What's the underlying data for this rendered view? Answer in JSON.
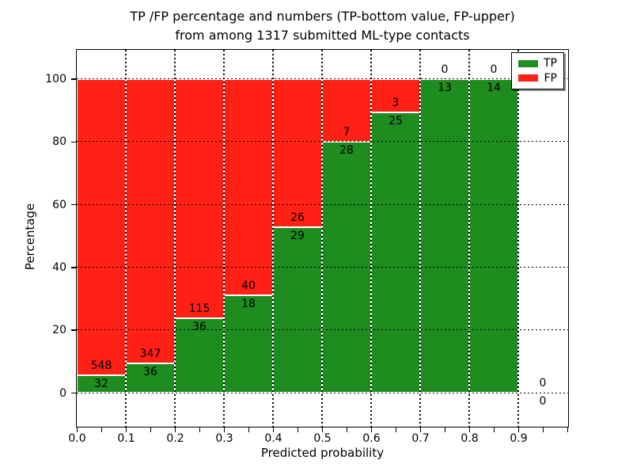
{
  "figure": {
    "title_line1": "TP /FP percentage and numbers (TP-bottom value, FP-upper)",
    "title_line2": "from among 1317 submitted ML-type contacts"
  },
  "chart_data": {
    "type": "bar",
    "stacked": true,
    "orientation": "vertical",
    "title": "TP /FP percentage and numbers (TP-bottom value, FP-upper)\nfrom among 1317 submitted ML-type contacts",
    "xlabel": "Predicted probability",
    "ylabel": "Percentage",
    "total_contacts": 1317,
    "bin_edges": [
      0.0,
      0.1,
      0.2,
      0.3,
      0.4,
      0.5,
      0.6,
      0.7,
      0.8,
      0.9,
      1.0
    ],
    "series": [
      {
        "name": "TP",
        "color": "#1e8c1e",
        "values": [
          32,
          36,
          36,
          18,
          29,
          28,
          25,
          13,
          14,
          0
        ]
      },
      {
        "name": "FP",
        "color": "#ff2016",
        "values": [
          548,
          347,
          115,
          40,
          26,
          7,
          3,
          0,
          0,
          0
        ]
      }
    ],
    "bars_show": "TP percentage of each bin (TP bottom, FP stacked to 100%)",
    "x_tick_labels": [
      "0.0",
      "0.1",
      "0.2",
      "0.3",
      "0.4",
      "0.5",
      "0.6",
      "0.7",
      "0.8",
      "0.9"
    ],
    "x_minor_tick_step": 0.05,
    "y_tick_values": [
      0,
      20,
      40,
      60,
      80,
      100
    ],
    "y_tick_labels": [
      "0",
      "20",
      "40",
      "60",
      "80",
      "100"
    ],
    "xlim": [
      0.0,
      1.0
    ],
    "ylim": [
      -10.8,
      109.5
    ],
    "grid": "dotted",
    "legend": {
      "position": "upper right",
      "entries": [
        {
          "label": "TP",
          "color": "#1e8c1e"
        },
        {
          "label": "FP",
          "color": "#ff2016"
        }
      ]
    }
  }
}
